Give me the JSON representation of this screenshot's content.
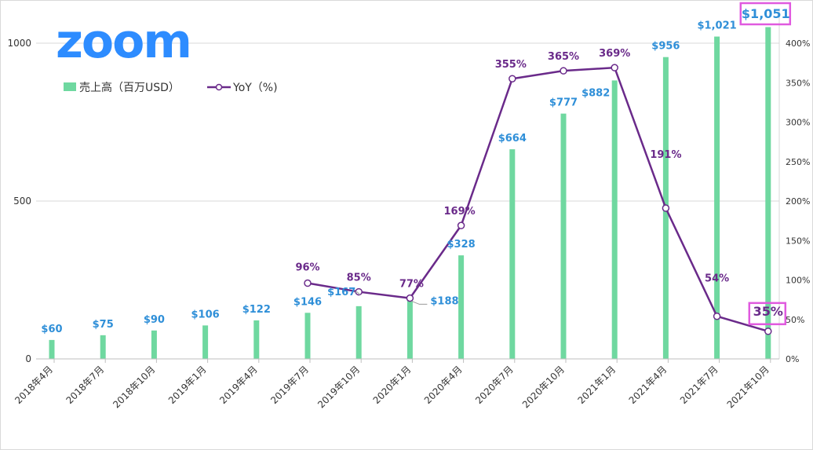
{
  "logo_text": "zoom",
  "colors": {
    "bar": "#6fd8a0",
    "line": "#6a2a8a",
    "bar_label": "#2f8fd8",
    "yoy_label": "#6a2a8a",
    "highlight_box": "#e05adf",
    "logo": "#2d8cff",
    "grid": "#d9d9d9"
  },
  "legend": {
    "bar_label": "売上高（百万USD）",
    "line_label": "YoY（%)"
  },
  "chart_data": {
    "type": "bar",
    "categories": [
      "2018年4月",
      "2018年7月",
      "2018年10月",
      "2019年1月",
      "2019年4月",
      "2019年7月",
      "2019年10月",
      "2020年1月",
      "2020年4月",
      "2020年7月",
      "2020年10月",
      "2021年1月",
      "2021年4月",
      "2021年7月",
      "2021年10月"
    ],
    "series": [
      {
        "name": "売上高（百万USD）",
        "type": "bar",
        "axis": "left",
        "values": [
          60,
          75,
          90,
          106,
          122,
          146,
          167,
          188,
          328,
          664,
          777,
          882,
          956,
          1021,
          1051
        ],
        "labels": [
          "$60",
          "$75",
          "$90",
          "$106",
          "$122",
          "$146",
          "$167",
          "$188",
          "$328",
          "$664",
          "$777",
          "$882",
          "$956",
          "$1,021",
          "$1,051"
        ]
      },
      {
        "name": "YoY（%)",
        "type": "line",
        "axis": "right",
        "values": [
          null,
          null,
          null,
          null,
          null,
          96,
          85,
          77,
          169,
          355,
          365,
          369,
          191,
          54,
          35
        ],
        "labels": [
          "",
          "",
          "",
          "",
          "",
          "96%",
          "85%",
          "77%",
          "169%",
          "355%",
          "365%",
          "369%",
          "191%",
          "54%",
          "35%"
        ]
      }
    ],
    "y_left": {
      "ylim": [
        0,
        1000
      ],
      "ticks": [
        "0",
        "500",
        "1000"
      ],
      "tick_values": [
        0,
        500,
        1000
      ]
    },
    "y_right": {
      "ylim": [
        0,
        400
      ],
      "ticks": [
        "0%",
        "50%",
        "100%",
        "150%",
        "200%",
        "250%",
        "300%",
        "350%",
        "400%"
      ],
      "tick_values": [
        0,
        50,
        100,
        150,
        200,
        250,
        300,
        350,
        400
      ]
    },
    "grid": true,
    "legend_position": "top-left",
    "highlighted": [
      "$1,051",
      "35%"
    ]
  }
}
